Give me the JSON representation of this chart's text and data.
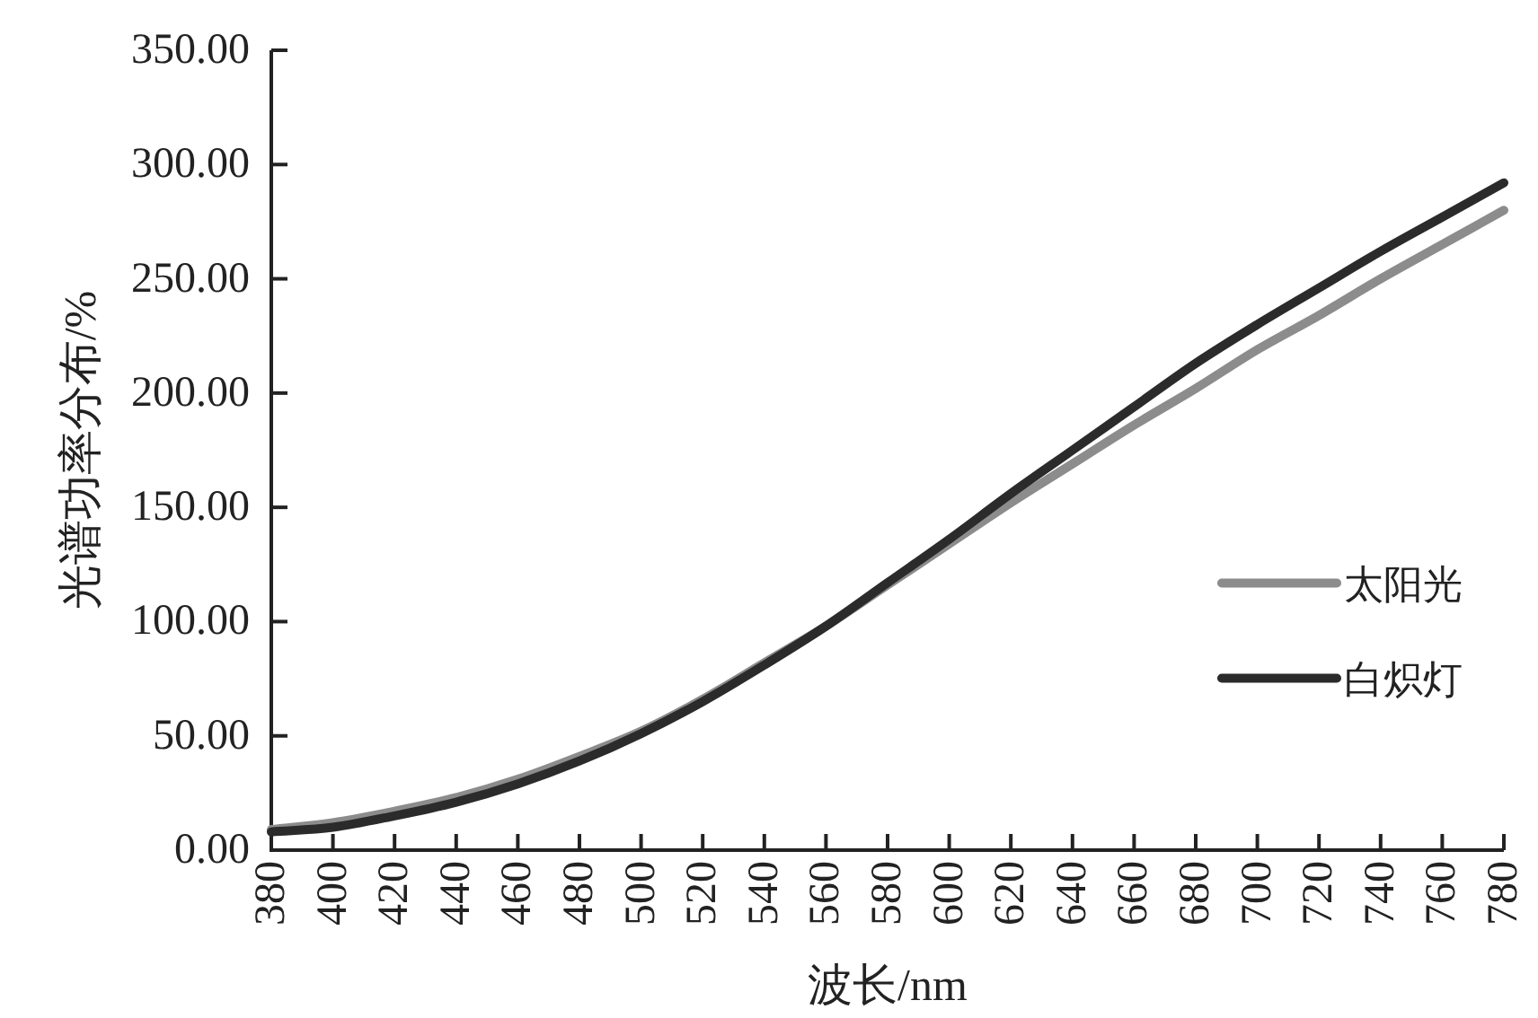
{
  "chart_data": {
    "type": "line",
    "xlabel": "波长/nm",
    "ylabel": "光谱功率分布/%",
    "x": [
      380,
      400,
      420,
      440,
      460,
      480,
      500,
      520,
      540,
      560,
      580,
      600,
      620,
      640,
      660,
      680,
      700,
      720,
      740,
      760,
      780
    ],
    "series": [
      {
        "name": "太阳光",
        "color": "#8c8c8c",
        "values": [
          9,
          12,
          17,
          23,
          31,
          41,
          52,
          66,
          82,
          98,
          116,
          134,
          152,
          169,
          186,
          202,
          219,
          234,
          250,
          265,
          280
        ]
      },
      {
        "name": "白炽灯",
        "color": "#2b2b2b",
        "values": [
          8,
          10,
          15,
          21,
          29,
          39,
          51,
          65,
          81,
          98,
          117,
          136,
          156,
          175,
          194,
          213,
          230,
          246,
          262,
          277,
          292
        ]
      }
    ],
    "xlim": [
      380,
      780
    ],
    "ylim": [
      0,
      350
    ],
    "xticks": [
      380,
      400,
      420,
      440,
      460,
      480,
      500,
      520,
      540,
      560,
      580,
      600,
      620,
      640,
      660,
      680,
      700,
      720,
      740,
      760,
      780
    ],
    "yticks": [
      {
        "value": 0,
        "label": "0.00"
      },
      {
        "value": 50,
        "label": "50.00"
      },
      {
        "value": 100,
        "label": "100.00"
      },
      {
        "value": 150,
        "label": "150.00"
      },
      {
        "value": 200,
        "label": "200.00"
      },
      {
        "value": 250,
        "label": "250.00"
      },
      {
        "value": 300,
        "label": "300.00"
      },
      {
        "value": 350,
        "label": "350.00"
      }
    ],
    "legend": "right",
    "line_style": "solid"
  }
}
